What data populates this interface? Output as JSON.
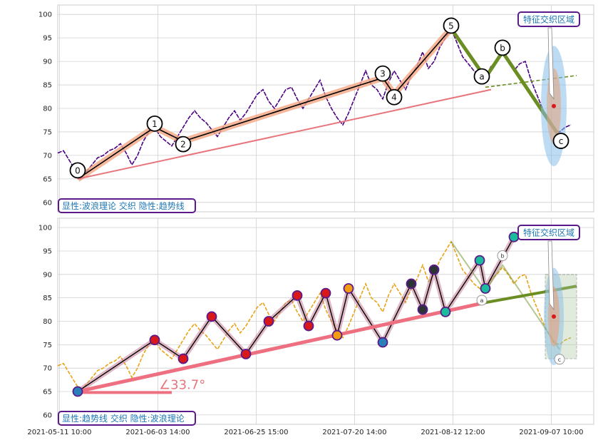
{
  "chart_data": [
    {
      "type": "line",
      "ylim": [
        58,
        102
      ],
      "yticks": [
        60,
        65,
        70,
        75,
        80,
        85,
        90,
        95,
        100
      ],
      "grid": true,
      "colors": {
        "price": "#4b0082",
        "wave_fill": "#f4a582",
        "wave": "#000000",
        "trend": "#e8747c",
        "corrective": "#6b8e23",
        "ellipse": "#87bde8",
        "box_text": "#1f77b4",
        "box_border": "#5b1a8a"
      },
      "price_points": [
        [
          0,
          70.5
        ],
        [
          1,
          71
        ],
        [
          2,
          69
        ],
        [
          3,
          67
        ],
        [
          4,
          65
        ],
        [
          5,
          66.5
        ],
        [
          6,
          68
        ],
        [
          7,
          69.5
        ],
        [
          8,
          70
        ],
        [
          9,
          71
        ],
        [
          10,
          71.5
        ],
        [
          11,
          72.5
        ],
        [
          12,
          70.5
        ],
        [
          13,
          68
        ],
        [
          14,
          70
        ],
        [
          15,
          73
        ],
        [
          16,
          75
        ],
        [
          17,
          76
        ],
        [
          18,
          74
        ],
        [
          19,
          73
        ],
        [
          20,
          72
        ],
        [
          21,
          74
        ],
        [
          22,
          76
        ],
        [
          23,
          78
        ],
        [
          24,
          79.5
        ],
        [
          25,
          78
        ],
        [
          26,
          77
        ],
        [
          27,
          75.5
        ],
        [
          28,
          74
        ],
        [
          29,
          76
        ],
        [
          30,
          78
        ],
        [
          31,
          79.5
        ],
        [
          32,
          77.5
        ],
        [
          33,
          79
        ],
        [
          34,
          81
        ],
        [
          35,
          83
        ],
        [
          36,
          84
        ],
        [
          37,
          81.5
        ],
        [
          38,
          80
        ],
        [
          39,
          82
        ],
        [
          40,
          84
        ],
        [
          41,
          84.5
        ],
        [
          42,
          82
        ],
        [
          43,
          80
        ],
        [
          44,
          82
        ],
        [
          45,
          84
        ],
        [
          46,
          86
        ],
        [
          47,
          82.5
        ],
        [
          48,
          80
        ],
        [
          49,
          78
        ],
        [
          50,
          76.5
        ],
        [
          51,
          79
        ],
        [
          52,
          82
        ],
        [
          53,
          85
        ],
        [
          54,
          88
        ],
        [
          55,
          85
        ],
        [
          56,
          84
        ],
        [
          57,
          82
        ],
        [
          58,
          85.5
        ],
        [
          59,
          88
        ],
        [
          60,
          86
        ],
        [
          61,
          84
        ],
        [
          62,
          87
        ],
        [
          63,
          89
        ],
        [
          64,
          92
        ],
        [
          65,
          88.5
        ],
        [
          66,
          90
        ],
        [
          67,
          93
        ],
        [
          68,
          95
        ],
        [
          69,
          97
        ],
        [
          70,
          94
        ],
        [
          71,
          91
        ],
        [
          72,
          89.5
        ],
        [
          73,
          88
        ],
        [
          74,
          87
        ],
        [
          75,
          86.5
        ],
        [
          76,
          89
        ],
        [
          77,
          90
        ],
        [
          78,
          91.5
        ],
        [
          79,
          90
        ],
        [
          80,
          88
        ],
        [
          81,
          89.5
        ],
        [
          82,
          90
        ],
        [
          83,
          86
        ],
        [
          84,
          83
        ],
        [
          85,
          80
        ],
        [
          86,
          77.5
        ],
        [
          87,
          75.5
        ],
        [
          88,
          75
        ],
        [
          89,
          76
        ],
        [
          90,
          76.5
        ]
      ],
      "wave_points": [
        {
          "label": "0",
          "x": 3.5,
          "y": 65
        },
        {
          "label": "1",
          "x": 17,
          "y": 76
        },
        {
          "label": "2",
          "x": 22,
          "y": 73
        },
        {
          "label": "3",
          "x": 57,
          "y": 86.5
        },
        {
          "label": "4",
          "x": 59,
          "y": 83
        },
        {
          "label": "5",
          "x": 69,
          "y": 97
        }
      ],
      "corrective_points": [
        {
          "label": "a",
          "x": 75,
          "y": 86.5
        },
        {
          "label": "b",
          "x": 78,
          "y": 92
        },
        {
          "label": "c",
          "x": 88,
          "y": 74
        }
      ],
      "wave_label_offsets": [
        [
          0,
          -12
        ],
        [
          0,
          -5
        ],
        [
          0,
          4
        ],
        [
          0,
          -6
        ],
        [
          0,
          4
        ],
        [
          0,
          -4
        ],
        [
          -5,
          -2
        ],
        [
          0,
          -6
        ],
        [
          2,
          6
        ]
      ],
      "trend_line": {
        "x": [
          3.5,
          76
        ],
        "y": [
          65,
          84
        ]
      },
      "dashed_line": {
        "x": [
          75,
          91
        ],
        "y": [
          84.5,
          87
        ]
      },
      "zone": {
        "x": 87,
        "y": 80.5,
        "rx": 2,
        "ry": 8
      },
      "box_text": "显性:波浪理论 交织 隐性:趋势线",
      "zone_label": "特征交织区域"
    },
    {
      "type": "line",
      "ylim": [
        58,
        102
      ],
      "yticks": [
        60,
        65,
        70,
        75,
        80,
        85,
        90,
        95,
        100
      ],
      "xticks": [
        "2021-05-11 10:00",
        "2021-06-03 14:00",
        "2021-06-25 15:00",
        "2021-07-20 14:00",
        "2021-08-12 12:00",
        "2021-09-07 10:00"
      ],
      "grid": true,
      "colors": {
        "price": "#e8a317",
        "trend": "#ee7080",
        "wave": "#000000",
        "corrective": "#6b8e23",
        "marker_red": "#d7191c",
        "marker_orange": "#f39c12",
        "marker_blue": "#2980b9",
        "marker_teal": "#1abc9c",
        "marker_dark": "#2d3436",
        "zone_box": "#a9c5a0",
        "box_text": "#1f77b4"
      },
      "price_points": [
        [
          0,
          70.5
        ],
        [
          1,
          71
        ],
        [
          2,
          69
        ],
        [
          3,
          67
        ],
        [
          4,
          65
        ],
        [
          5,
          66.5
        ],
        [
          6,
          68
        ],
        [
          7,
          69.5
        ],
        [
          8,
          70
        ],
        [
          9,
          71
        ],
        [
          10,
          71.5
        ],
        [
          11,
          72.5
        ],
        [
          12,
          70.5
        ],
        [
          13,
          68
        ],
        [
          14,
          70
        ],
        [
          15,
          73
        ],
        [
          16,
          75
        ],
        [
          17,
          76
        ],
        [
          18,
          74
        ],
        [
          19,
          73
        ],
        [
          20,
          72
        ],
        [
          21,
          74
        ],
        [
          22,
          76
        ],
        [
          23,
          78
        ],
        [
          24,
          79.5
        ],
        [
          25,
          78
        ],
        [
          26,
          77
        ],
        [
          27,
          75.5
        ],
        [
          28,
          74
        ],
        [
          29,
          76
        ],
        [
          30,
          78
        ],
        [
          31,
          79.5
        ],
        [
          32,
          77.5
        ],
        [
          33,
          79
        ],
        [
          34,
          81
        ],
        [
          35,
          83
        ],
        [
          36,
          84
        ],
        [
          37,
          81.5
        ],
        [
          38,
          80
        ],
        [
          39,
          82
        ],
        [
          40,
          84
        ],
        [
          41,
          84.5
        ],
        [
          42,
          82
        ],
        [
          43,
          80
        ],
        [
          44,
          82
        ],
        [
          45,
          84
        ],
        [
          46,
          86
        ],
        [
          47,
          82.5
        ],
        [
          48,
          80
        ],
        [
          49,
          78
        ],
        [
          50,
          76.5
        ],
        [
          51,
          79
        ],
        [
          52,
          82
        ],
        [
          53,
          85
        ],
        [
          54,
          88
        ],
        [
          55,
          85
        ],
        [
          56,
          84
        ],
        [
          57,
          82
        ],
        [
          58,
          85.5
        ],
        [
          59,
          88
        ],
        [
          60,
          86
        ],
        [
          61,
          84
        ],
        [
          62,
          87
        ],
        [
          63,
          89
        ],
        [
          64,
          92
        ],
        [
          65,
          88.5
        ],
        [
          66,
          90
        ],
        [
          67,
          93
        ],
        [
          68,
          95
        ],
        [
          69,
          97
        ],
        [
          70,
          94
        ],
        [
          71,
          91
        ],
        [
          72,
          89.5
        ],
        [
          73,
          88
        ],
        [
          74,
          87
        ],
        [
          75,
          86.5
        ],
        [
          76,
          89
        ],
        [
          77,
          90
        ],
        [
          78,
          91.5
        ],
        [
          79,
          90
        ],
        [
          80,
          88
        ],
        [
          81,
          89.5
        ],
        [
          82,
          90
        ],
        [
          83,
          86
        ],
        [
          84,
          83
        ],
        [
          85,
          80
        ],
        [
          86,
          77.5
        ],
        [
          87,
          75.5
        ],
        [
          88,
          75
        ],
        [
          89,
          76
        ],
        [
          90,
          76.5
        ]
      ],
      "zigzag_points": [
        {
          "x": 3.5,
          "y": 65,
          "m": "blue"
        },
        {
          "x": 17,
          "y": 76,
          "m": "red"
        },
        {
          "x": 22,
          "y": 72,
          "m": "red"
        },
        {
          "x": 27,
          "y": 81,
          "m": "red"
        },
        {
          "x": 33,
          "y": 73,
          "m": "red"
        },
        {
          "x": 37,
          "y": 80,
          "m": "red"
        },
        {
          "x": 42,
          "y": 85.5,
          "m": "red"
        },
        {
          "x": 44,
          "y": 79,
          "m": "red"
        },
        {
          "x": 47,
          "y": 86,
          "m": "red"
        },
        {
          "x": 49,
          "y": 77,
          "m": "orange"
        },
        {
          "x": 51,
          "y": 87,
          "m": "orange"
        },
        {
          "x": 57,
          "y": 75.5,
          "m": "blue"
        },
        {
          "x": 62,
          "y": 88,
          "m": "dark"
        },
        {
          "x": 64,
          "y": 82.5,
          "m": "dark"
        },
        {
          "x": 66,
          "y": 91,
          "m": "dark"
        },
        {
          "x": 68,
          "y": 82,
          "m": "teal"
        },
        {
          "x": 74,
          "y": 93,
          "m": "teal"
        },
        {
          "x": 75,
          "y": 87,
          "m": "teal"
        },
        {
          "x": 80,
          "y": 98,
          "m": "teal"
        }
      ],
      "ghost_wave_points": [
        {
          "label": "a",
          "x": 75,
          "y": 84.5
        },
        {
          "label": "b",
          "x": 78,
          "y": 94
        },
        {
          "label": "c",
          "x": 88,
          "y": 72.5
        }
      ],
      "ghost_wave_path": [
        [
          69,
          97
        ],
        [
          75,
          86.5
        ],
        [
          78,
          92
        ],
        [
          88,
          74
        ]
      ],
      "trend_line": {
        "x": [
          3.5,
          75
        ],
        "y": [
          65,
          84
        ]
      },
      "corrective_line": {
        "x": [
          75,
          91
        ],
        "y": [
          84,
          87.5
        ]
      },
      "horizontal_line": {
        "x": [
          3.5,
          20
        ],
        "y": [
          64.8,
          64.8
        ]
      },
      "angle_text": "∠33.7°",
      "zone_box": {
        "x0": 85.5,
        "x1": 91,
        "y0": 72,
        "y1": 90
      },
      "zone": {
        "x": 87,
        "y": 81,
        "rx": 2,
        "ry": 8
      },
      "box_text": "显性:趋势线 交织 隐性:波浪理论",
      "zone_label": "特征交织区域"
    }
  ]
}
